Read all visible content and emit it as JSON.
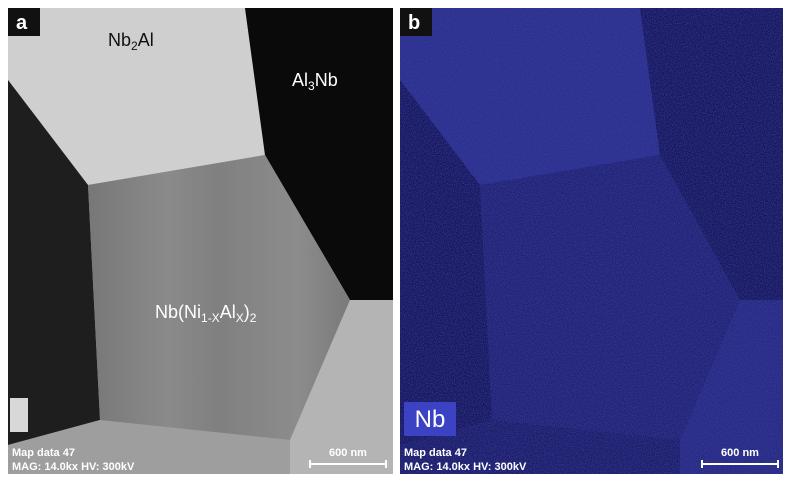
{
  "panels": [
    {
      "label": "a",
      "phases": [
        [
          "Nb",
          "2",
          "Al"
        ],
        [
          "Al",
          "3",
          "Nb"
        ],
        [
          "Nb(Ni",
          "1-X",
          "Al",
          "X",
          ")",
          "2"
        ]
      ],
      "info": [
        "Map data 47",
        "MAG: 14.0kx  HV: 300kV"
      ],
      "scale_bar": "600 nm"
    },
    {
      "label": "b",
      "element": "Nb",
      "info": [
        "Map data 47",
        "MAG: 14.0kx  HV: 300kV"
      ],
      "scale_bar": "600 nm"
    }
  ]
}
